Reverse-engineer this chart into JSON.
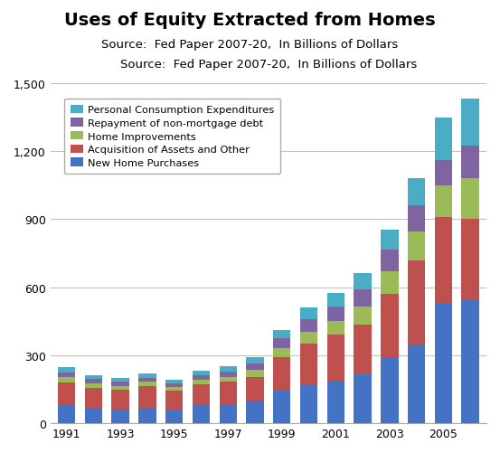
{
  "title": "Uses of Equity Extracted from Homes",
  "subtitle": "Source:  Fed Paper 2007-20,  In Billions of Dollars",
  "years": [
    1991,
    1992,
    1993,
    1994,
    1995,
    1996,
    1997,
    1998,
    1999,
    2000,
    2001,
    2002,
    2003,
    2004,
    2005,
    2006
  ],
  "series": {
    "New Home Purchases": [
      80,
      68,
      62,
      70,
      57,
      80,
      85,
      100,
      145,
      170,
      185,
      215,
      290,
      345,
      530,
      545
    ],
    "Acquisition of Assets and Other": [
      100,
      90,
      88,
      95,
      88,
      92,
      98,
      105,
      145,
      180,
      205,
      220,
      280,
      375,
      380,
      355
    ],
    "Home Improvements": [
      22,
      18,
      16,
      18,
      15,
      20,
      22,
      30,
      42,
      55,
      62,
      78,
      100,
      125,
      140,
      180
    ],
    "Repayment of non-mortgage debt": [
      22,
      18,
      16,
      18,
      15,
      20,
      22,
      30,
      42,
      55,
      62,
      78,
      95,
      115,
      110,
      145
    ],
    "Personal Consumption Expenditures": [
      25,
      18,
      16,
      18,
      15,
      20,
      23,
      28,
      38,
      50,
      60,
      70,
      90,
      120,
      190,
      205
    ]
  },
  "colors": {
    "New Home Purchases": "#4472C4",
    "Acquisition of Assets and Other": "#C0504D",
    "Home Improvements": "#9BBB59",
    "Repayment of non-mortgage debt": "#8064A2",
    "Personal Consumption Expenditures": "#4BACC6"
  },
  "ylim": [
    0,
    1500
  ],
  "yticks": [
    0,
    300,
    600,
    900,
    1200,
    1500
  ],
  "grid_color": "#C0C0C0",
  "title_fontsize": 14,
  "subtitle_fontsize": 9.5
}
